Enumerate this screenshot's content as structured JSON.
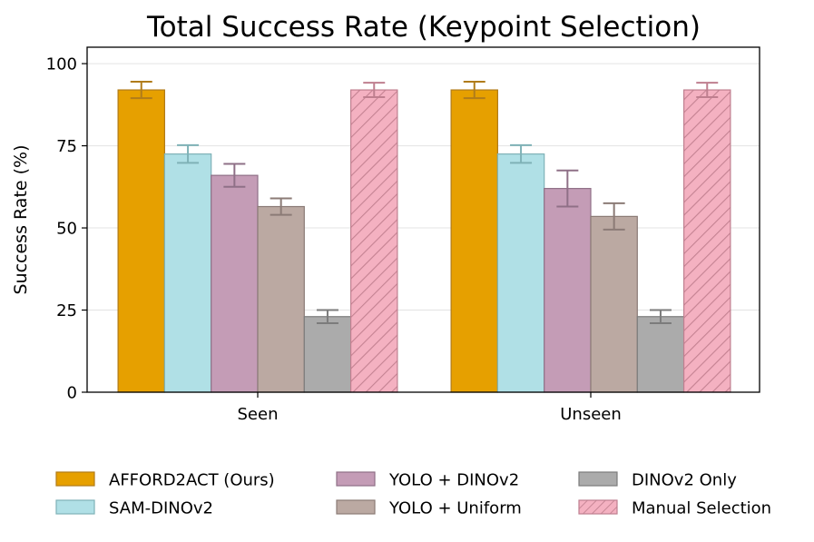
{
  "chart_data": {
    "type": "bar",
    "title": "Total Success Rate (Keypoint Selection)",
    "xlabel": "",
    "ylabel": "Success Rate (%)",
    "ylim": [
      0,
      105
    ],
    "yticks": [
      0,
      25,
      50,
      75,
      100
    ],
    "ytick_labels": [
      "0",
      "25",
      "50",
      "75",
      "100"
    ],
    "grid": true,
    "legend_position": "bottom",
    "categories": [
      "Seen",
      "Unseen"
    ],
    "series": [
      {
        "name": "AFFORD2ACT (Ours)",
        "values": [
          92,
          92
        ],
        "errors": [
          2.5,
          2.5
        ],
        "color": "#e6a000",
        "edge": "#b07c1a",
        "hatch": false
      },
      {
        "name": "SAM-DINOv2",
        "values": [
          72.5,
          72.5
        ],
        "errors": [
          2.7,
          2.7
        ],
        "color": "#b0e0e6",
        "edge": "#7fb2b7",
        "hatch": false
      },
      {
        "name": "YOLO + DINOv2",
        "values": [
          66,
          62
        ],
        "errors": [
          3.5,
          5.5
        ],
        "color": "#c49cb6",
        "edge": "#8f7087",
        "hatch": false
      },
      {
        "name": "YOLO + Uniform",
        "values": [
          56.5,
          53.5
        ],
        "errors": [
          2.5,
          4
        ],
        "color": "#bba9a2",
        "edge": "#8b7b76",
        "hatch": false
      },
      {
        "name": "DINOv2 Only",
        "values": [
          23,
          23
        ],
        "errors": [
          2,
          2
        ],
        "color": "#ababab",
        "edge": "#7c7c7c",
        "hatch": false
      },
      {
        "name": "Manual Selection",
        "values": [
          92,
          92
        ],
        "errors": [
          2.2,
          2.2
        ],
        "color": "#f4b1c1",
        "edge": "#bf7f8f",
        "hatch": true
      }
    ]
  }
}
